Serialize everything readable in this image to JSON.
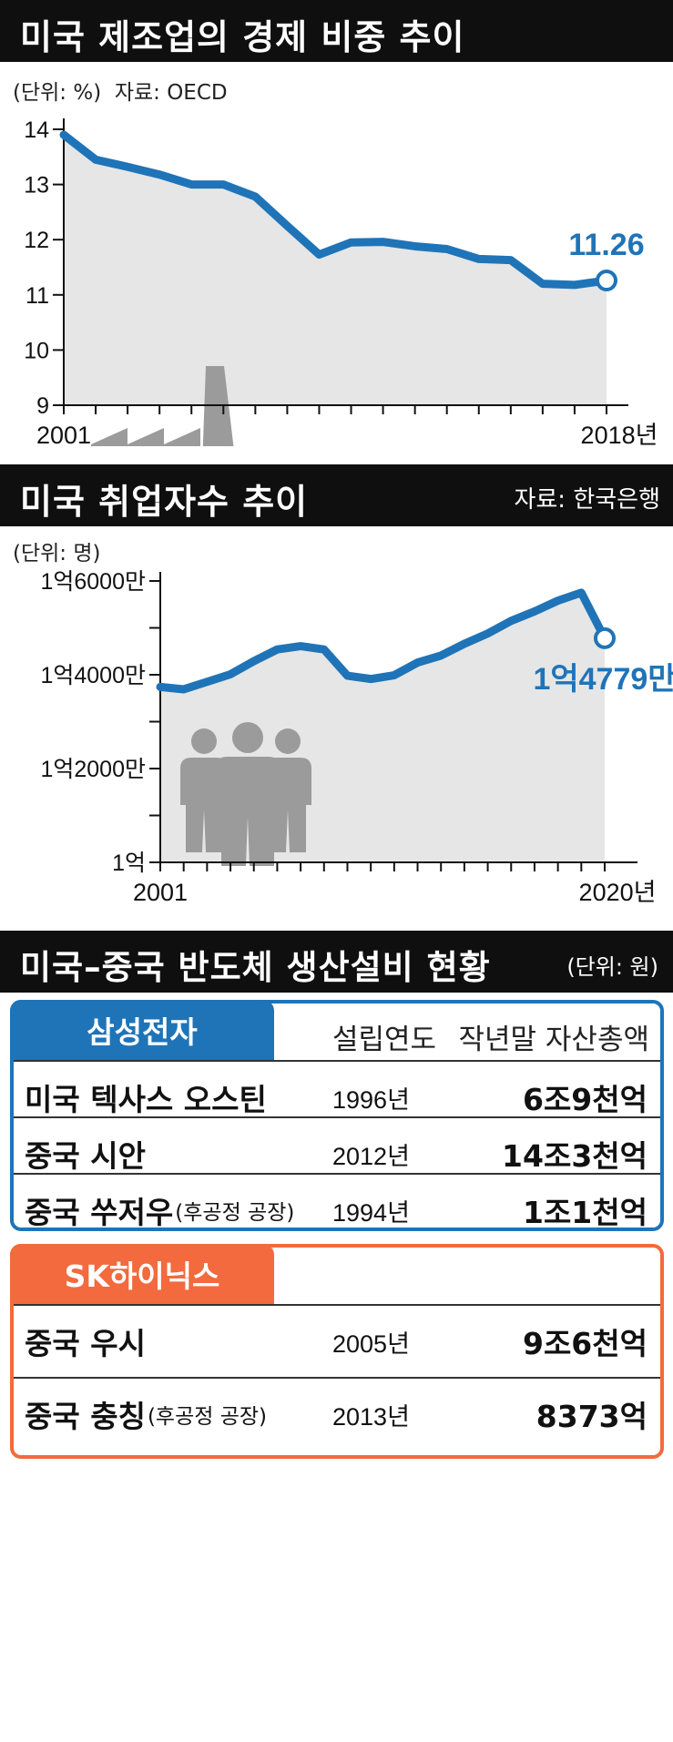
{
  "section1": {
    "title": "미국 제조업의 경제 비중 추이",
    "unit": "(단위: %)",
    "source": "자료: OECD"
  },
  "section2": {
    "title": "미국 취업자수 추이",
    "source": "자료: 한국은행",
    "unit": "(단위: 명)"
  },
  "section3": {
    "title": "미국–중국 반도체 생산설비 현황",
    "unit": "(단위: 원)",
    "col_year": "설립연도",
    "col_assets": "작년말 자산총액",
    "samsung": {
      "label": "삼성전자",
      "rows": [
        {
          "loc": "미국 텍사스 오스틴",
          "sub": "",
          "year": "1996년",
          "amount": "6조9천억"
        },
        {
          "loc": "중국 시안",
          "sub": "",
          "year": "2012년",
          "amount": "14조3천억"
        },
        {
          "loc": "중국 쑤저우",
          "sub": "(후공정 공장)",
          "year": "1994년",
          "amount": "1조1천억"
        }
      ]
    },
    "hynix": {
      "label": "SK하이닉스",
      "rows": [
        {
          "loc": "중국 우시",
          "sub": "",
          "year": "2005년",
          "amount": "9조6천억"
        },
        {
          "loc": "중국 충칭",
          "sub": "(후공정 공장)",
          "year": "2013년",
          "amount": "8373억"
        }
      ]
    }
  },
  "colors": {
    "accent": "#1f74b8",
    "area": "#e6e6e6",
    "icon": "#9b9b9b",
    "orange": "#f26a3d"
  },
  "chart_data": [
    {
      "type": "area",
      "x": [
        2001,
        2002,
        2003,
        2004,
        2005,
        2006,
        2007,
        2008,
        2009,
        2010,
        2011,
        2012,
        2013,
        2014,
        2015,
        2016,
        2017,
        2018
      ],
      "values": [
        13.9,
        13.45,
        13.32,
        13.18,
        13.0,
        13.0,
        12.78,
        12.25,
        11.73,
        11.95,
        11.96,
        11.88,
        11.83,
        11.65,
        11.63,
        11.2,
        11.18,
        11.26
      ],
      "ylim": [
        9,
        14
      ],
      "yticks": [
        "9",
        "10",
        "11",
        "12",
        "13",
        "14"
      ],
      "xticks": [
        "2001",
        "2018년"
      ],
      "callout": "11.26",
      "icon": "factory-icon"
    },
    {
      "type": "area",
      "x": [
        2001,
        2002,
        2003,
        2004,
        2005,
        2006,
        2007,
        2008,
        2009,
        2010,
        2011,
        2012,
        2013,
        2014,
        2015,
        2016,
        2017,
        2018,
        2019,
        2020
      ],
      "values": [
        137400000,
        136900000,
        138500000,
        140100000,
        142900000,
        145400000,
        146100000,
        145400000,
        139800000,
        139100000,
        139900000,
        142600000,
        144100000,
        146600000,
        148800000,
        151500000,
        153500000,
        155800000,
        157500000,
        147790000
      ],
      "ylim": [
        100000000,
        160000000
      ],
      "yticks": [
        "1억",
        "",
        "1억2000만",
        "",
        "1억4000만",
        "",
        "1억6000만"
      ],
      "xticks": [
        "2001",
        "2020년"
      ],
      "callout": "1억4779만",
      "icon": "people-icon"
    }
  ]
}
